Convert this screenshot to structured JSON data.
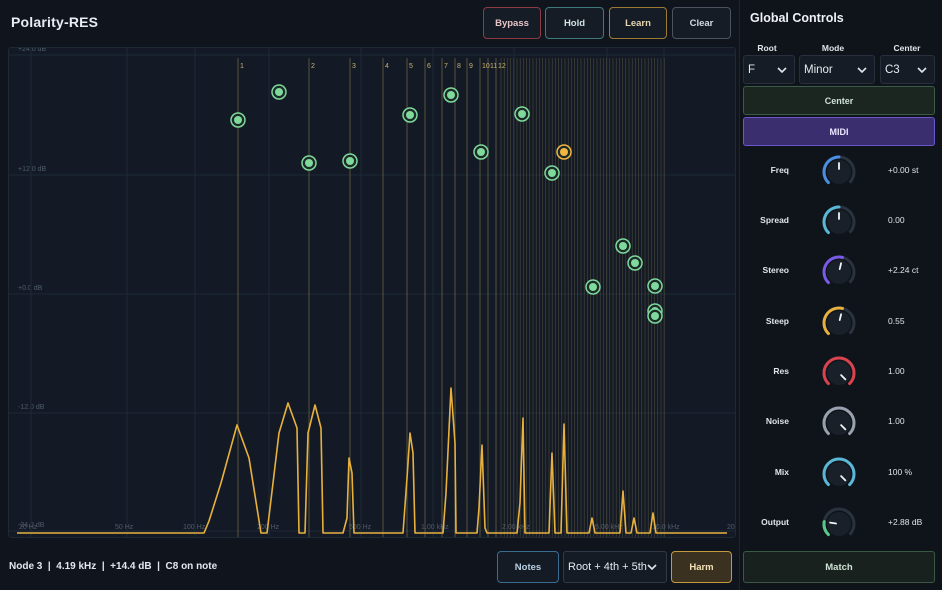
{
  "app": {
    "title": "Polarity-RES"
  },
  "toolbar": {
    "bypass_label": "Bypass",
    "hold_label": "Hold",
    "learn_label": "Learn",
    "clear_label": "Clear"
  },
  "graph": {
    "db_labels": [
      "+24.0 dB",
      "+12.0 dB",
      "+0.0 dB",
      "-12.0 dB",
      "-24.0 dB"
    ],
    "freq_labels": [
      "20 Hz",
      "50 Hz",
      "100 Hz",
      "200 Hz",
      "500 Hz",
      "1.00 kHz",
      "2.00 kHz",
      "5.00 kHz",
      "10.0 kHz",
      "20"
    ],
    "harmonic_labels": [
      "1",
      "2",
      "3",
      "4",
      "5",
      "6",
      "7",
      "8",
      "9",
      "10",
      "11",
      "12"
    ],
    "colors": {
      "spectrum": "#e8b13e",
      "node": "#7ed99a",
      "node_selected": "#f2b640",
      "harmonic_line": "#8a7a4c",
      "grid": "#1e2836"
    }
  },
  "status": {
    "text": "Node 3  |  4.19 kHz  |  +14.4 dB  |  C8 on note"
  },
  "bottom": {
    "notes_label": "Notes",
    "chord_value": "Root + 4th + 5th",
    "harm_label": "Harm"
  },
  "side": {
    "title": "Global Controls",
    "root_label": "Root",
    "root_value": "F",
    "mode_label": "Mode",
    "mode_value": "Minor",
    "center_label": "Center",
    "center_value": "C3",
    "center_button": "Center",
    "midi_button": "MIDI",
    "match_button": "Match",
    "knobs": [
      {
        "label": "Freq",
        "value": "+0.00 st",
        "color": "#4a8fe0",
        "level": 0.5
      },
      {
        "label": "Spread",
        "value": "0.00",
        "color": "#5ab7d6",
        "level": 0.5
      },
      {
        "label": "Stereo",
        "value": "+2.24 ct",
        "color": "#7a5ae8",
        "level": 0.55
      },
      {
        "label": "Steep",
        "value": "0.55",
        "color": "#e8b13e",
        "level": 0.55
      },
      {
        "label": "Res",
        "value": "1.00",
        "color": "#d8434d",
        "level": 1.0
      },
      {
        "label": "Noise",
        "value": "1.00",
        "color": "#9aa1ae",
        "level": 1.0
      },
      {
        "label": "Mix",
        "value": "100 %",
        "color": "#5ab7d6",
        "level": 1.0
      },
      {
        "label": "Output",
        "value": "+2.88 dB",
        "color": "#58c98a",
        "level": 0.2
      }
    ]
  }
}
